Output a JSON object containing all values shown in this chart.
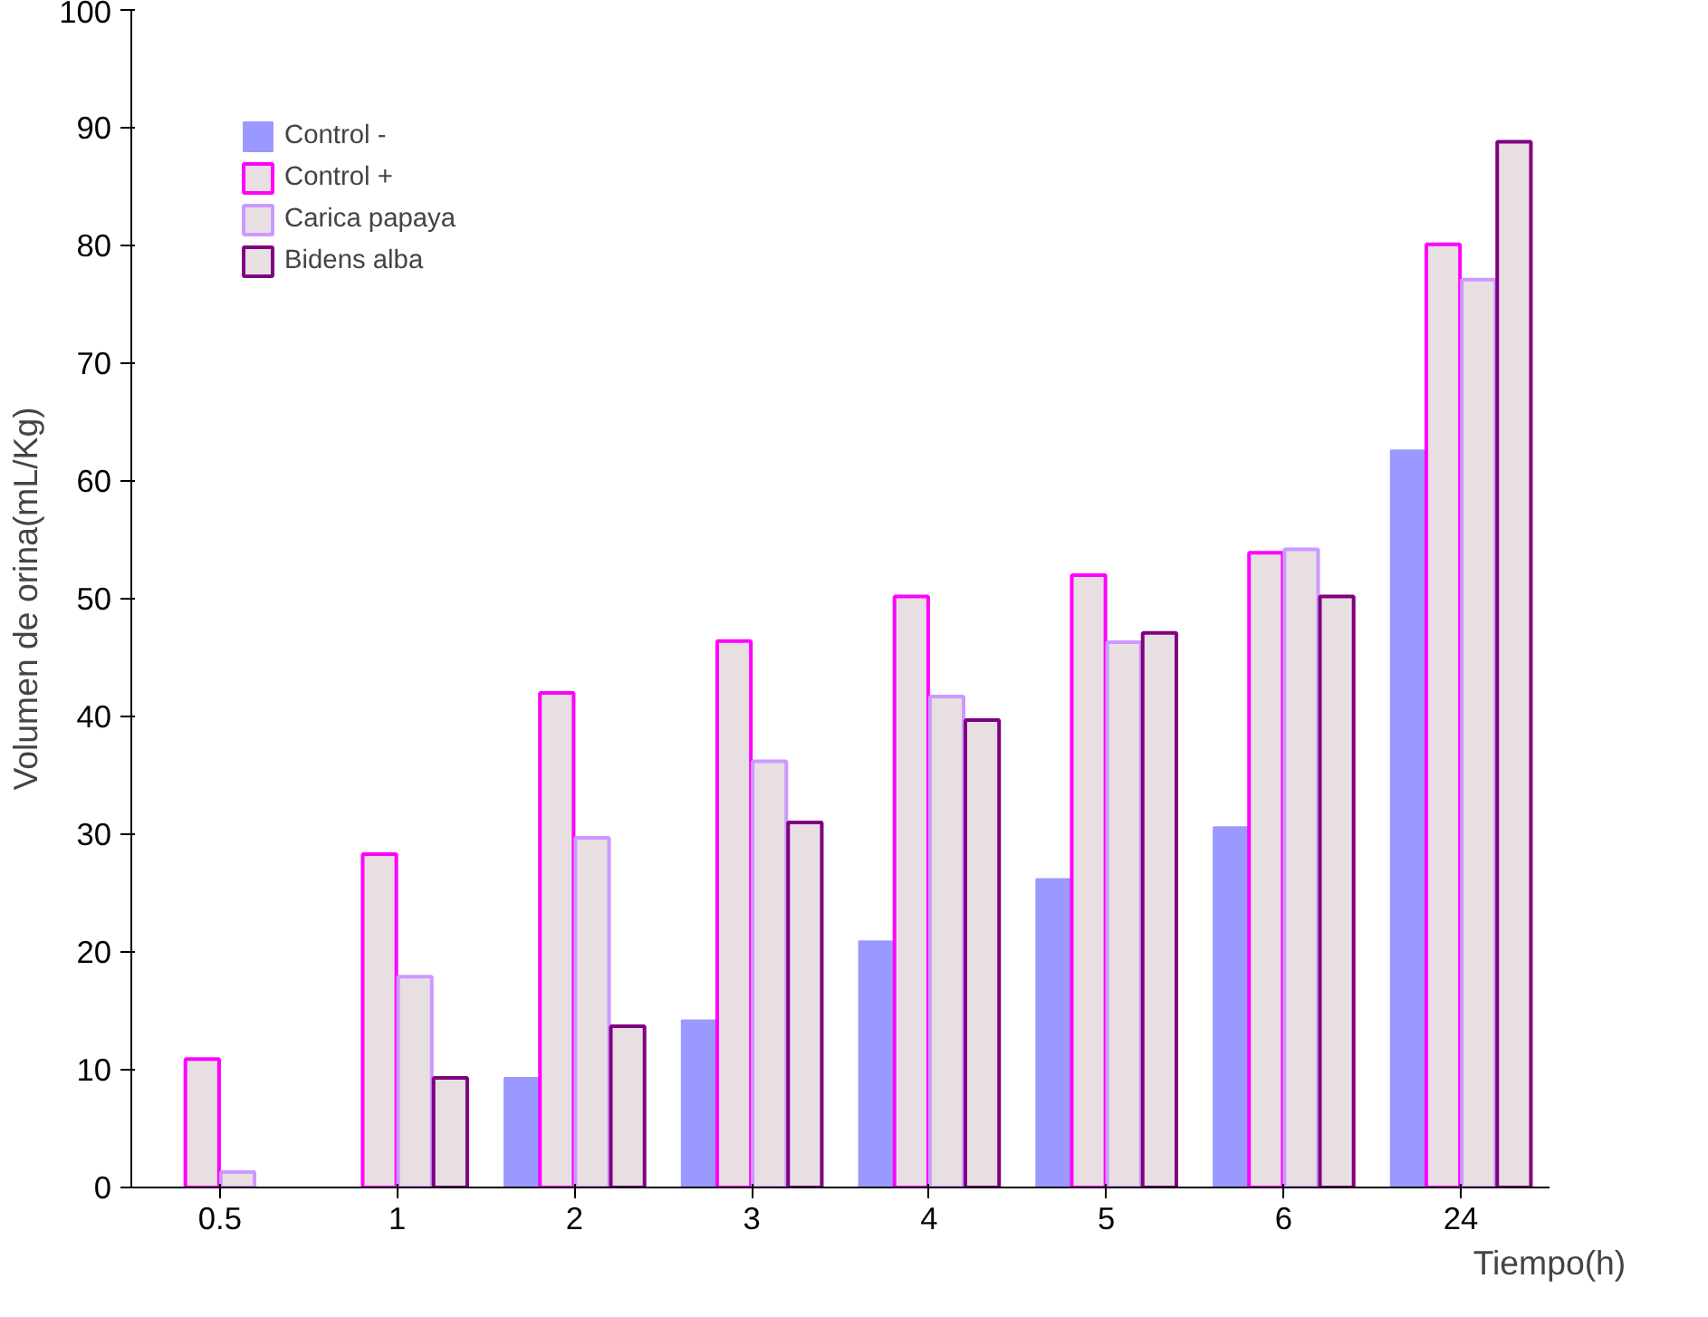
{
  "chart_data": {
    "type": "bar",
    "xlabel": "Tiempo(h)",
    "ylabel": "Volumen de orina(mL/Kg)",
    "categories": [
      "0.5",
      "1",
      "2",
      "3",
      "4",
      "5",
      "6",
      "24"
    ],
    "series": [
      {
        "name": "Control -",
        "color": "#9999ff",
        "values": [
          null,
          null,
          9.3,
          14.2,
          20.9,
          26.2,
          30.6,
          62.6
        ]
      },
      {
        "name": "Control +",
        "color": "#ff00ff",
        "values": [
          10.9,
          28.3,
          42.0,
          46.4,
          50.2,
          52.0,
          53.9,
          80.1
        ]
      },
      {
        "name": "Carica papaya",
        "color": "#cc99ff",
        "values": [
          1.3,
          17.9,
          29.7,
          36.2,
          41.7,
          46.3,
          54.2,
          77.1
        ]
      },
      {
        "name": "Bidens alba",
        "color": "#800080",
        "values": [
          null,
          9.3,
          13.7,
          31.0,
          39.7,
          47.1,
          50.2,
          88.8
        ]
      }
    ],
    "ylim": [
      0,
      100
    ],
    "yticks": [
      0,
      10,
      20,
      30,
      40,
      50,
      60,
      70,
      80,
      90,
      100
    ],
    "grid": false,
    "legend": "top left"
  }
}
